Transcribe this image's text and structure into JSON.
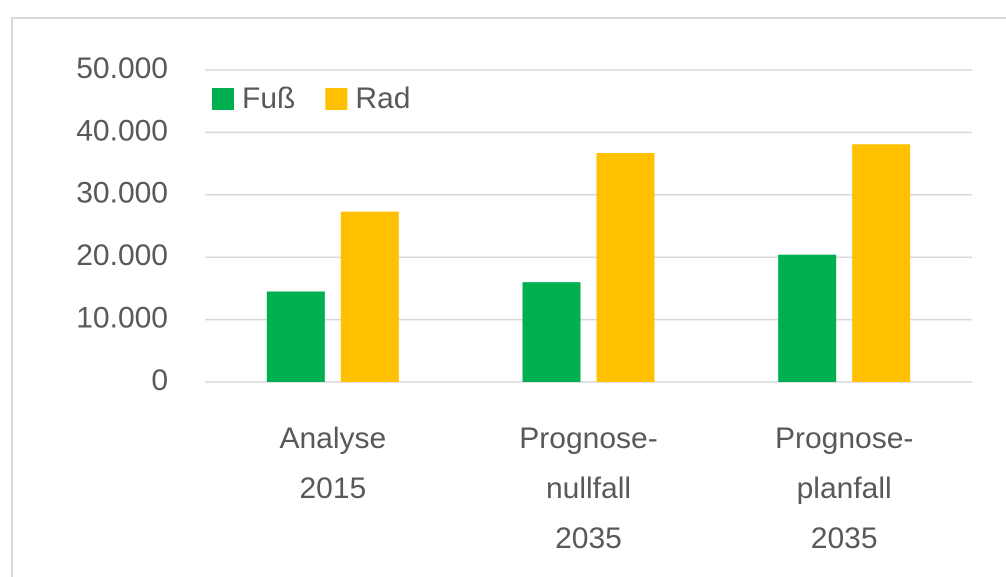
{
  "chart_data": {
    "type": "bar",
    "categories": [
      [
        "Analyse",
        "2015"
      ],
      [
        "Prognose-",
        "nullfall",
        "2035"
      ],
      [
        "Prognose-",
        "planfall",
        "2035"
      ]
    ],
    "series": [
      {
        "name": "Fuß",
        "color": "#00b050",
        "values": [
          14500,
          16000,
          20400
        ]
      },
      {
        "name": "Rad",
        "color": "#ffc000",
        "values": [
          27300,
          36700,
          38100
        ]
      }
    ],
    "ylim": [
      0,
      50000
    ],
    "yticks": [
      0,
      {
        "value": 10000,
        "label": "10.000"
      },
      {
        "value": 20000,
        "label": "20.000"
      },
      {
        "value": 30000,
        "label": "30.000"
      },
      {
        "value": 40000,
        "label": "40.000"
      },
      {
        "value": 50000,
        "label": "50.000"
      }
    ],
    "grid": true,
    "legend": "top-left"
  }
}
